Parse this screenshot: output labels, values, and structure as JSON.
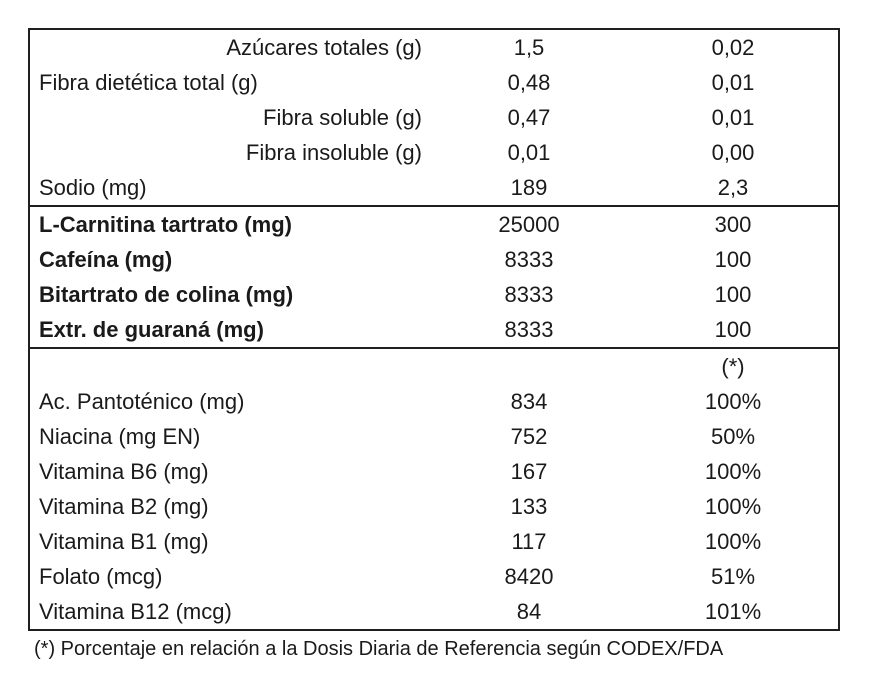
{
  "table": {
    "rows": [
      {
        "label": "Azúcares totales (g)",
        "v1": "1,5",
        "v2": "0,02"
      },
      {
        "label": "Fibra dietética total (g)",
        "v1": "0,48",
        "v2": "0,01"
      },
      {
        "label": "Fibra soluble (g)",
        "v1": "0,47",
        "v2": "0,01"
      },
      {
        "label": "Fibra insoluble (g)",
        "v1": "0,01",
        "v2": "0,00"
      },
      {
        "label": "Sodio (mg)",
        "v1": "189",
        "v2": "2,3"
      },
      {
        "label": "L-Carnitina tartrato (mg)",
        "v1": "25000",
        "v2": "300"
      },
      {
        "label": "Cafeína (mg)",
        "v1": "8333",
        "v2": "100"
      },
      {
        "label": "Bitartrato de colina (mg)",
        "v1": "8333",
        "v2": "100"
      },
      {
        "label": "Extr. de guaraná (mg)",
        "v1": "8333",
        "v2": "100"
      },
      {
        "label": "",
        "v1": "",
        "v2": "(*)"
      },
      {
        "label": "Ac. Pantoténico (mg)",
        "v1": "834",
        "v2": "100%"
      },
      {
        "label": "Niacina (mg EN)",
        "v1": "752",
        "v2": "50%"
      },
      {
        "label": "Vitamina B6 (mg)",
        "v1": "167",
        "v2": "100%"
      },
      {
        "label": "Vitamina B2 (mg)",
        "v1": "133",
        "v2": "100%"
      },
      {
        "label": "Vitamina B1 (mg)",
        "v1": "117",
        "v2": "100%"
      },
      {
        "label": "Folato (mcg)",
        "v1": "8420",
        "v2": "51%"
      },
      {
        "label": "Vitamina B12 (mcg)",
        "v1": "84",
        "v2": "101%"
      }
    ]
  },
  "footnote": "(*) Porcentaje en relación a la Dosis Diaria de Referencia según CODEX/FDA",
  "colors": {
    "border": "#1f1f1f",
    "text": "#1a1a1a",
    "background": "#ffffff"
  }
}
